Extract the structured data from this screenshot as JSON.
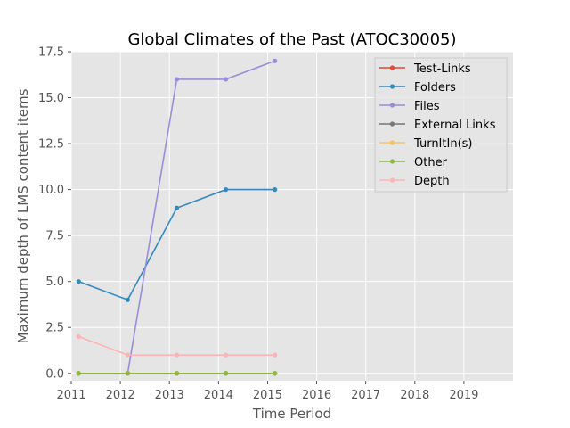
{
  "chart_data": {
    "type": "line",
    "title": "Global Climates of the Past (ATOC30005)",
    "xlabel": "Time Period",
    "ylabel": "Maximum depth of LMS content items",
    "xlim": [
      2011,
      2020
    ],
    "ylim": [
      -0.4,
      17.5
    ],
    "x_ticks": [
      2011,
      2012,
      2013,
      2014,
      2015,
      2016,
      2017,
      2018,
      2019
    ],
    "x_tick_labels": [
      "2011",
      "2012",
      "2013",
      "2014",
      "2015",
      "2016",
      "2017",
      "2018",
      "2019"
    ],
    "y_ticks": [
      0,
      2.5,
      5,
      7.5,
      10,
      12.5,
      15,
      17.5
    ],
    "y_tick_labels": [
      "0.0",
      "2.5",
      "5.0",
      "7.5",
      "10.0",
      "12.5",
      "15.0",
      "17.5"
    ],
    "grid": true,
    "legend_position": "top-right",
    "x": [
      2011.15,
      2012.15,
      2013.15,
      2014.15,
      2015.15
    ],
    "series": [
      {
        "name": "Test-Links",
        "color": "#E24A33",
        "values": [
          0,
          0,
          0,
          0,
          0
        ]
      },
      {
        "name": "Folders",
        "color": "#348ABD",
        "values": [
          5,
          4,
          9,
          10,
          10
        ]
      },
      {
        "name": "Files",
        "color": "#988ED5",
        "values": [
          null,
          0,
          16,
          16,
          17
        ]
      },
      {
        "name": "External Links",
        "color": "#777777",
        "values": [
          0,
          0,
          0,
          0,
          0
        ]
      },
      {
        "name": "TurnItIn(s)",
        "color": "#FBC15E",
        "values": [
          0,
          0,
          0,
          0,
          0
        ]
      },
      {
        "name": "Other",
        "color": "#8EBA42",
        "values": [
          0,
          0,
          0,
          0,
          0
        ]
      },
      {
        "name": "Depth",
        "color": "#FFB5B8",
        "values": [
          2,
          1,
          1,
          1,
          1
        ]
      }
    ]
  }
}
